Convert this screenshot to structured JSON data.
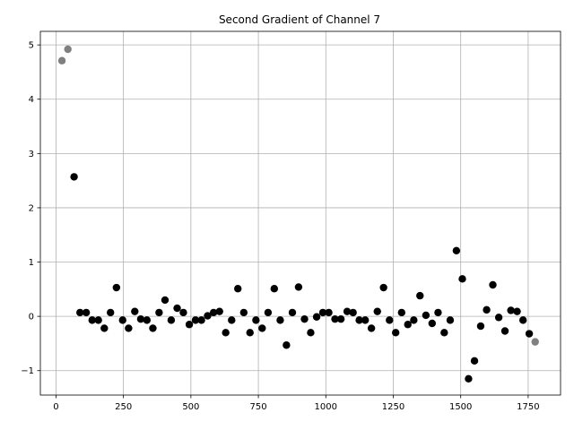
{
  "chart_data": {
    "type": "scatter",
    "title": "Second Gradient of Channel 7",
    "xlabel": "",
    "ylabel": "",
    "xlim": [
      -58,
      1870
    ],
    "ylim": [
      -1.45,
      5.25
    ],
    "grid": true,
    "xticks": [
      0,
      250,
      500,
      750,
      1000,
      1250,
      1500,
      1750
    ],
    "yticks": [
      -1,
      0,
      1,
      2,
      3,
      4,
      5
    ],
    "ytick_labels": [
      "−1",
      "0",
      "1",
      "2",
      "3",
      "4",
      "5"
    ],
    "series": [
      {
        "color": "#000000",
        "points": [
          [
            67,
            2.57
          ],
          [
            89,
            0.07
          ],
          [
            112,
            0.07
          ],
          [
            134,
            -0.07
          ],
          [
            157,
            -0.07
          ],
          [
            179,
            -0.22
          ],
          [
            202,
            0.07
          ],
          [
            224,
            0.53
          ],
          [
            247,
            -0.07
          ],
          [
            269,
            -0.22
          ],
          [
            292,
            0.09
          ],
          [
            314,
            -0.05
          ],
          [
            337,
            -0.07
          ],
          [
            359,
            -0.22
          ],
          [
            382,
            0.07
          ],
          [
            404,
            0.3
          ],
          [
            427,
            -0.07
          ],
          [
            449,
            0.15
          ],
          [
            472,
            0.07
          ],
          [
            494,
            -0.15
          ],
          [
            517,
            -0.07
          ],
          [
            539,
            -0.07
          ],
          [
            562,
            0.01
          ],
          [
            584,
            0.07
          ],
          [
            606,
            0.09
          ],
          [
            629,
            -0.3
          ],
          [
            651,
            -0.07
          ],
          [
            674,
            0.51
          ],
          [
            696,
            0.07
          ],
          [
            719,
            -0.3
          ],
          [
            741,
            -0.07
          ],
          [
            764,
            -0.22
          ],
          [
            786,
            0.07
          ],
          [
            809,
            0.51
          ],
          [
            831,
            -0.07
          ],
          [
            854,
            -0.53
          ],
          [
            876,
            0.07
          ],
          [
            899,
            0.54
          ],
          [
            921,
            -0.05
          ],
          [
            944,
            -0.3
          ],
          [
            966,
            -0.01
          ],
          [
            989,
            0.07
          ],
          [
            1011,
            0.07
          ],
          [
            1034,
            -0.05
          ],
          [
            1056,
            -0.05
          ],
          [
            1079,
            0.09
          ],
          [
            1101,
            0.07
          ],
          [
            1124,
            -0.07
          ],
          [
            1146,
            -0.07
          ],
          [
            1169,
            -0.22
          ],
          [
            1191,
            0.09
          ],
          [
            1214,
            0.53
          ],
          [
            1236,
            -0.07
          ],
          [
            1259,
            -0.3
          ],
          [
            1281,
            0.07
          ],
          [
            1304,
            -0.15
          ],
          [
            1326,
            -0.07
          ],
          [
            1349,
            0.38
          ],
          [
            1371,
            0.02
          ],
          [
            1394,
            -0.13
          ],
          [
            1416,
            0.07
          ],
          [
            1439,
            -0.3
          ],
          [
            1461,
            -0.07
          ],
          [
            1484,
            1.21
          ],
          [
            1506,
            0.69
          ],
          [
            1529,
            -1.15
          ],
          [
            1551,
            -0.82
          ],
          [
            1574,
            -0.18
          ],
          [
            1596,
            0.12
          ],
          [
            1619,
            0.58
          ],
          [
            1641,
            -0.02
          ],
          [
            1664,
            -0.27
          ],
          [
            1686,
            0.11
          ],
          [
            1709,
            0.09
          ],
          [
            1731,
            -0.07
          ],
          [
            1754,
            -0.32
          ]
        ]
      },
      {
        "color": "#808080",
        "points": [
          [
            22,
            4.71
          ],
          [
            44,
            4.92
          ],
          [
            1776,
            -0.47
          ]
        ]
      }
    ]
  }
}
